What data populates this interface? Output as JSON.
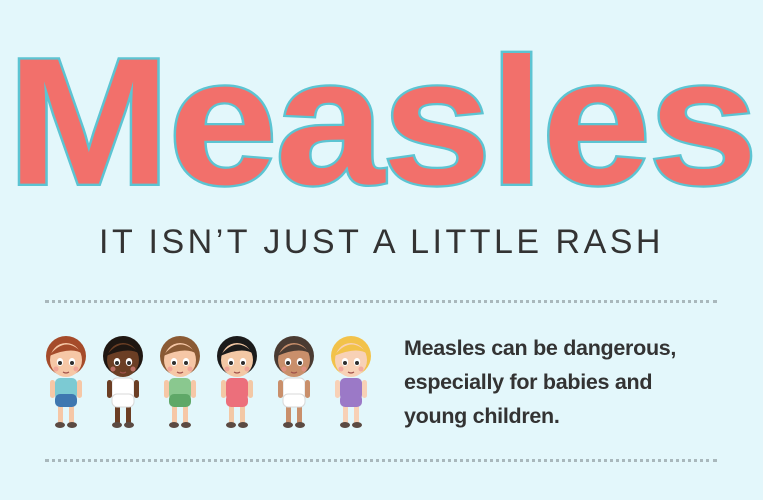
{
  "headline": "Measles",
  "tagline": "IT ISN’T JUST A LITTLE RASH",
  "message": {
    "line1": "Measles can be dangerous,",
    "line2": "especially for babies and",
    "line3": "young children."
  },
  "illustration": {
    "children": [
      {
        "name": "child-1",
        "skin": "#f6c7a6",
        "hair": "#a54b2a",
        "shirt": "#7ccad3",
        "bottom": "#3e77b0"
      },
      {
        "name": "child-2",
        "skin": "#6b3e24",
        "hair": "#1f1712",
        "shirt": "#ffffff",
        "bottom": "#ffffff"
      },
      {
        "name": "child-3",
        "skin": "#f6c7a6",
        "hair": "#8a5a34",
        "shirt": "#8ac88f",
        "bottom": "#5fa868"
      },
      {
        "name": "child-4",
        "skin": "#f3c8a5",
        "hair": "#1b1b1b",
        "shirt": "#ec6f7b",
        "bottom": "#ec6f7b"
      },
      {
        "name": "child-5",
        "skin": "#c98f6b",
        "hair": "#4a3b32",
        "shirt": "#ffffff",
        "bottom": "#ffffff"
      },
      {
        "name": "child-6",
        "skin": "#f8d1b6",
        "hair": "#f2c24a",
        "shirt": "#9b79c7",
        "bottom": "#9b79c7"
      }
    ]
  },
  "colors": {
    "background": "#e3f7fb",
    "headline_fill": "#f2706b",
    "headline_outline": "#5cc4d2",
    "text": "#333333"
  }
}
